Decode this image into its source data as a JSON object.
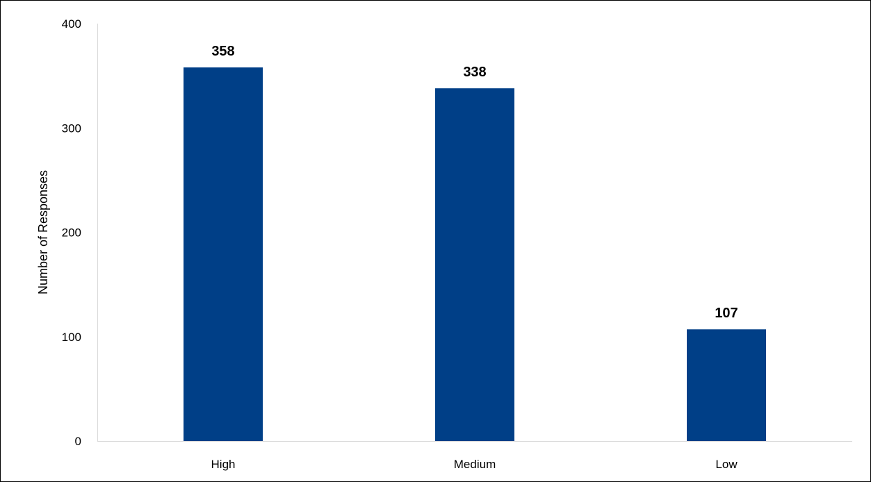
{
  "chart_data": {
    "type": "bar",
    "title": "",
    "xlabel": "",
    "ylabel": "Number of Responses",
    "categories": [
      "High",
      "Medium",
      "Low"
    ],
    "values": [
      358,
      338,
      107
    ],
    "data_labels": [
      "358",
      "338",
      "107"
    ],
    "ylim": [
      0,
      400
    ],
    "yticks": [
      0,
      100,
      200,
      300,
      400
    ],
    "ytick_labels": [
      "0",
      "100",
      "200",
      "300",
      "400"
    ],
    "grid": false,
    "legend": "none",
    "bar_color": "#003F87",
    "axis_color": "#D9D9D9"
  }
}
